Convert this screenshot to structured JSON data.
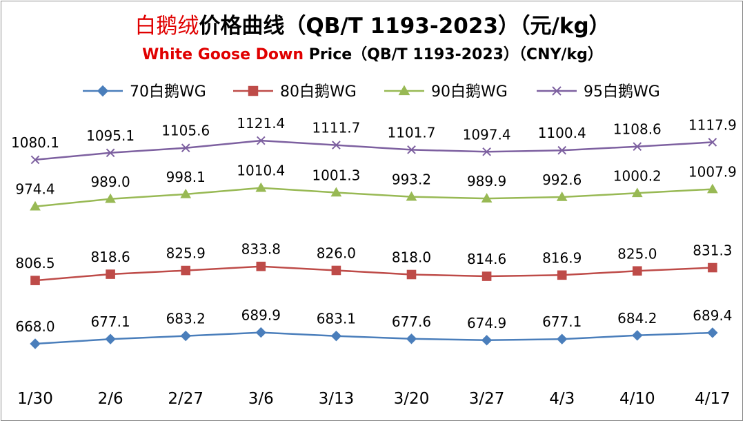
{
  "title": {
    "zh_highlight": "白鹅绒",
    "zh_rest": "价格曲线（QB/T 1193-2023）（元/kg）",
    "en_highlight": "White Goose Down",
    "en_rest": " Price（QB/T 1193-2023）（CNY/kg）"
  },
  "colors": {
    "series_70": "#4a7ebb",
    "series_80": "#be4b48",
    "series_90": "#98b954",
    "series_95": "#7d60a0",
    "title_highlight": "#e00000"
  },
  "chart_data": {
    "type": "line",
    "categories": [
      "1/30",
      "2/6",
      "2/27",
      "3/6",
      "3/13",
      "3/20",
      "3/27",
      "4/3",
      "4/10",
      "4/17"
    ],
    "series": [
      {
        "name": "70白鹅WG",
        "marker": "diamond",
        "color": "#4a7ebb",
        "values": [
          668.0,
          677.1,
          683.2,
          689.9,
          683.1,
          677.6,
          674.9,
          677.1,
          684.2,
          689.4
        ]
      },
      {
        "name": "80白鹅WG",
        "marker": "square",
        "color": "#be4b48",
        "values": [
          806.5,
          818.6,
          825.9,
          833.8,
          826.0,
          818.0,
          814.6,
          816.9,
          825.0,
          831.3
        ]
      },
      {
        "name": "90白鹅WG",
        "marker": "triangle",
        "color": "#98b954",
        "values": [
          974.4,
          989.0,
          998.1,
          1010.4,
          1001.3,
          993.2,
          989.9,
          992.6,
          1000.2,
          1007.9
        ]
      },
      {
        "name": "95白鹅WG",
        "marker": "x",
        "color": "#7d60a0",
        "values": [
          1080.1,
          1095.1,
          1105.6,
          1121.4,
          1111.7,
          1101.7,
          1097.4,
          1100.4,
          1108.6,
          1117.9
        ]
      }
    ],
    "data_labels": [
      [
        "668.0",
        "677.1",
        "683.2",
        "689.9",
        "683.1",
        "677.6",
        "674.9",
        "677.1",
        "684.2",
        "689.4"
      ],
      [
        "806.5",
        "818.6",
        "825.9",
        "833.8",
        "826.0",
        "818.0",
        "814.6",
        "816.9",
        "825.0",
        "831.3"
      ],
      [
        "974.4",
        "989.0",
        "998.1",
        "1010.4",
        "1001.3",
        "993.2",
        "989.9",
        "992.6",
        "1000.2",
        "1007.9"
      ],
      [
        "1080.1",
        "1095.1",
        "1105.6",
        "1121.4",
        "1111.7",
        "1101.7",
        "1097.4",
        "1100.4",
        "1108.6",
        "1117.9"
      ]
    ],
    "legend_position": "top",
    "grid": false,
    "y_axis_visible": false,
    "xlabel": "",
    "ylabel": ""
  }
}
